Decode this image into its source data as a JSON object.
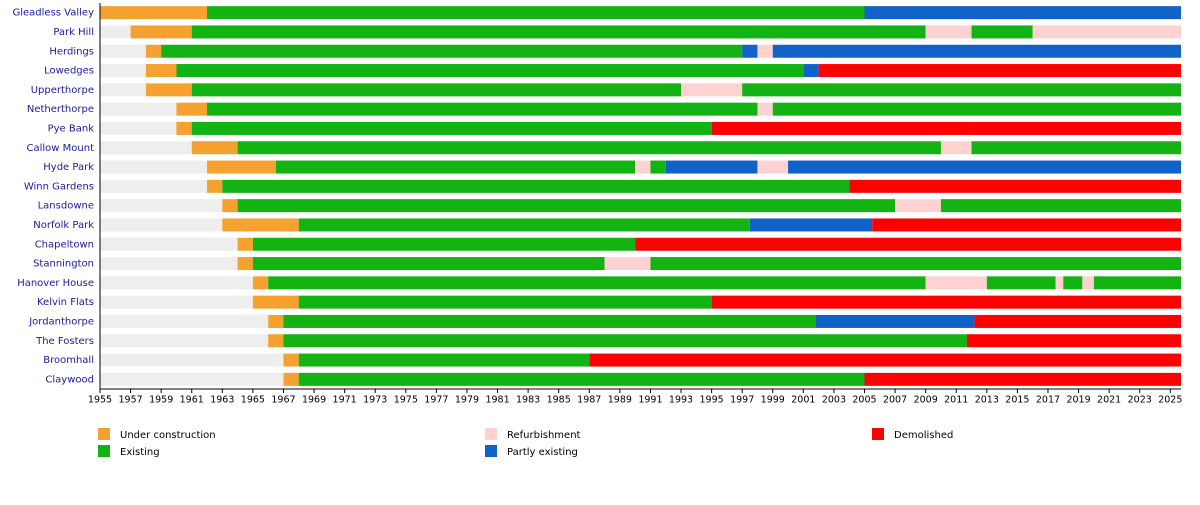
{
  "chart_data": {
    "type": "timeline",
    "xlim": [
      1955,
      2025.7
    ],
    "xticks": [
      1955,
      1957,
      1959,
      1961,
      1963,
      1965,
      1967,
      1969,
      1971,
      1973,
      1975,
      1977,
      1979,
      1981,
      1983,
      1985,
      1987,
      1989,
      1991,
      1993,
      1995,
      1997,
      1999,
      2001,
      2003,
      2005,
      2007,
      2009,
      2011,
      2013,
      2015,
      2017,
      2019,
      2021,
      2023,
      2025
    ],
    "legend": [
      {
        "name": "Under construction",
        "color": "#f5a12f"
      },
      {
        "name": "Existing",
        "color": "#12b312"
      },
      {
        "name": "Refurbishment",
        "color": "#ffd1d1"
      },
      {
        "name": "Partly existing",
        "color": "#1062c9"
      },
      {
        "name": "Demolished",
        "color": "#ff0000"
      }
    ],
    "rows": [
      {
        "name": "Gleadless Valley",
        "periods": [
          {
            "status": "Under construction",
            "from": 1955,
            "to": 1962
          },
          {
            "status": "Existing",
            "from": 1962,
            "to": 2005
          },
          {
            "status": "Partly existing",
            "from": 2005,
            "to": 2025.7
          }
        ]
      },
      {
        "name": "Park Hill",
        "periods": [
          {
            "status": "Under construction",
            "from": 1957,
            "to": 1961
          },
          {
            "status": "Existing",
            "from": 1961,
            "to": 2009
          },
          {
            "status": "Refurbishment",
            "from": 2009,
            "to": 2012
          },
          {
            "status": "Existing",
            "from": 2012,
            "to": 2016
          },
          {
            "status": "Refurbishment",
            "from": 2016,
            "to": 2025.7
          }
        ]
      },
      {
        "name": "Herdings",
        "periods": [
          {
            "status": "Under construction",
            "from": 1958,
            "to": 1959
          },
          {
            "status": "Existing",
            "from": 1959,
            "to": 1997
          },
          {
            "status": "Partly existing",
            "from": 1997,
            "to": 1998
          },
          {
            "status": "Refurbishment",
            "from": 1998,
            "to": 1999
          },
          {
            "status": "Partly existing",
            "from": 1999,
            "to": 2025.7
          }
        ]
      },
      {
        "name": "Lowedges",
        "periods": [
          {
            "status": "Under construction",
            "from": 1958,
            "to": 1960
          },
          {
            "status": "Existing",
            "from": 1960,
            "to": 2001
          },
          {
            "status": "Partly existing",
            "from": 2001,
            "to": 2002
          },
          {
            "status": "Demolished",
            "from": 2002,
            "to": 2025.7
          }
        ]
      },
      {
        "name": "Upperthorpe",
        "periods": [
          {
            "status": "Under construction",
            "from": 1958,
            "to": 1961
          },
          {
            "status": "Existing",
            "from": 1961,
            "to": 1993
          },
          {
            "status": "Refurbishment",
            "from": 1993,
            "to": 1997
          },
          {
            "status": "Existing",
            "from": 1997,
            "to": 2025.7
          }
        ]
      },
      {
        "name": "Netherthorpe",
        "periods": [
          {
            "status": "Under construction",
            "from": 1960,
            "to": 1962
          },
          {
            "status": "Existing",
            "from": 1962,
            "to": 1998
          },
          {
            "status": "Refurbishment",
            "from": 1998,
            "to": 1999
          },
          {
            "status": "Existing",
            "from": 1999,
            "to": 2025.7
          }
        ]
      },
      {
        "name": "Pye Bank",
        "periods": [
          {
            "status": "Under construction",
            "from": 1960,
            "to": 1961
          },
          {
            "status": "Existing",
            "from": 1961,
            "to": 1995
          },
          {
            "status": "Demolished",
            "from": 1995,
            "to": 2025.7
          }
        ]
      },
      {
        "name": "Callow Mount",
        "periods": [
          {
            "status": "Under construction",
            "from": 1961,
            "to": 1964
          },
          {
            "status": "Existing",
            "from": 1964,
            "to": 2010
          },
          {
            "status": "Refurbishment",
            "from": 2010,
            "to": 2012
          },
          {
            "status": "Existing",
            "from": 2012,
            "to": 2025.7
          }
        ]
      },
      {
        "name": "Hyde Park",
        "periods": [
          {
            "status": "Under construction",
            "from": 1962,
            "to": 1966.5
          },
          {
            "status": "Existing",
            "from": 1966.5,
            "to": 1990
          },
          {
            "status": "Refurbishment",
            "from": 1990,
            "to": 1991
          },
          {
            "status": "Existing",
            "from": 1991,
            "to": 1992
          },
          {
            "status": "Partly existing",
            "from": 1992,
            "to": 1998
          },
          {
            "status": "Refurbishment",
            "from": 1998,
            "to": 2000
          },
          {
            "status": "Partly existing",
            "from": 2000,
            "to": 2025.7
          }
        ]
      },
      {
        "name": "Winn Gardens",
        "periods": [
          {
            "status": "Under construction",
            "from": 1962,
            "to": 1963
          },
          {
            "status": "Existing",
            "from": 1963,
            "to": 2004
          },
          {
            "status": "Demolished",
            "from": 2004,
            "to": 2025.7
          }
        ]
      },
      {
        "name": "Lansdowne",
        "periods": [
          {
            "status": "Under construction",
            "from": 1963,
            "to": 1964
          },
          {
            "status": "Existing",
            "from": 1964,
            "to": 2007
          },
          {
            "status": "Refurbishment",
            "from": 2007,
            "to": 2010
          },
          {
            "status": "Existing",
            "from": 2010,
            "to": 2025.7
          }
        ]
      },
      {
        "name": "Norfolk Park",
        "periods": [
          {
            "status": "Under construction",
            "from": 1963,
            "to": 1968
          },
          {
            "status": "Existing",
            "from": 1968,
            "to": 1997.5
          },
          {
            "status": "Partly existing",
            "from": 1997.5,
            "to": 2005.5
          },
          {
            "status": "Demolished",
            "from": 2005.5,
            "to": 2025.7
          }
        ]
      },
      {
        "name": "Chapeltown",
        "periods": [
          {
            "status": "Under construction",
            "from": 1964,
            "to": 1965
          },
          {
            "status": "Existing",
            "from": 1965,
            "to": 1990
          },
          {
            "status": "Demolished",
            "from": 1990,
            "to": 2025.7
          }
        ]
      },
      {
        "name": "Stannington",
        "periods": [
          {
            "status": "Under construction",
            "from": 1964,
            "to": 1965
          },
          {
            "status": "Existing",
            "from": 1965,
            "to": 1988
          },
          {
            "status": "Refurbishment",
            "from": 1988,
            "to": 1991
          },
          {
            "status": "Existing",
            "from": 1991,
            "to": 2025.7
          }
        ]
      },
      {
        "name": "Hanover House",
        "periods": [
          {
            "status": "Under construction",
            "from": 1965,
            "to": 1966
          },
          {
            "status": "Existing",
            "from": 1966,
            "to": 2009
          },
          {
            "status": "Refurbishment",
            "from": 2009,
            "to": 2013
          },
          {
            "status": "Existing",
            "from": 2013,
            "to": 2017.5
          },
          {
            "status": "Refurbishment",
            "from": 2017.5,
            "to": 2018
          },
          {
            "status": "Existing",
            "from": 2018,
            "to": 2019.25
          },
          {
            "status": "Refurbishment",
            "from": 2019.25,
            "to": 2020
          },
          {
            "status": "Existing",
            "from": 2020,
            "to": 2025.7
          }
        ]
      },
      {
        "name": "Kelvin Flats",
        "periods": [
          {
            "status": "Under construction",
            "from": 1965,
            "to": 1968
          },
          {
            "status": "Existing",
            "from": 1968,
            "to": 1995
          },
          {
            "status": "Demolished",
            "from": 1995,
            "to": 2025.7
          }
        ]
      },
      {
        "name": "Jordanthorpe",
        "periods": [
          {
            "status": "Under construction",
            "from": 1966,
            "to": 1967
          },
          {
            "status": "Existing",
            "from": 1967,
            "to": 2001.8
          },
          {
            "status": "Partly existing",
            "from": 2001.8,
            "to": 2012.2
          },
          {
            "status": "Demolished",
            "from": 2012.2,
            "to": 2025.7
          }
        ]
      },
      {
        "name": "The Fosters",
        "periods": [
          {
            "status": "Under construction",
            "from": 1966,
            "to": 1967
          },
          {
            "status": "Existing",
            "from": 1967,
            "to": 2011.7
          },
          {
            "status": "Demolished",
            "from": 2011.7,
            "to": 2025.7
          }
        ]
      },
      {
        "name": "Broomhall",
        "periods": [
          {
            "status": "Under construction",
            "from": 1967,
            "to": 1968
          },
          {
            "status": "Existing",
            "from": 1968,
            "to": 1987
          },
          {
            "status": "Demolished",
            "from": 1987,
            "to": 2025.7
          }
        ]
      },
      {
        "name": "Claywood",
        "periods": [
          {
            "status": "Under construction",
            "from": 1967,
            "to": 1968
          },
          {
            "status": "Existing",
            "from": 1968,
            "to": 2005
          },
          {
            "status": "Demolished",
            "from": 2005,
            "to": 2025.7
          }
        ]
      }
    ]
  }
}
